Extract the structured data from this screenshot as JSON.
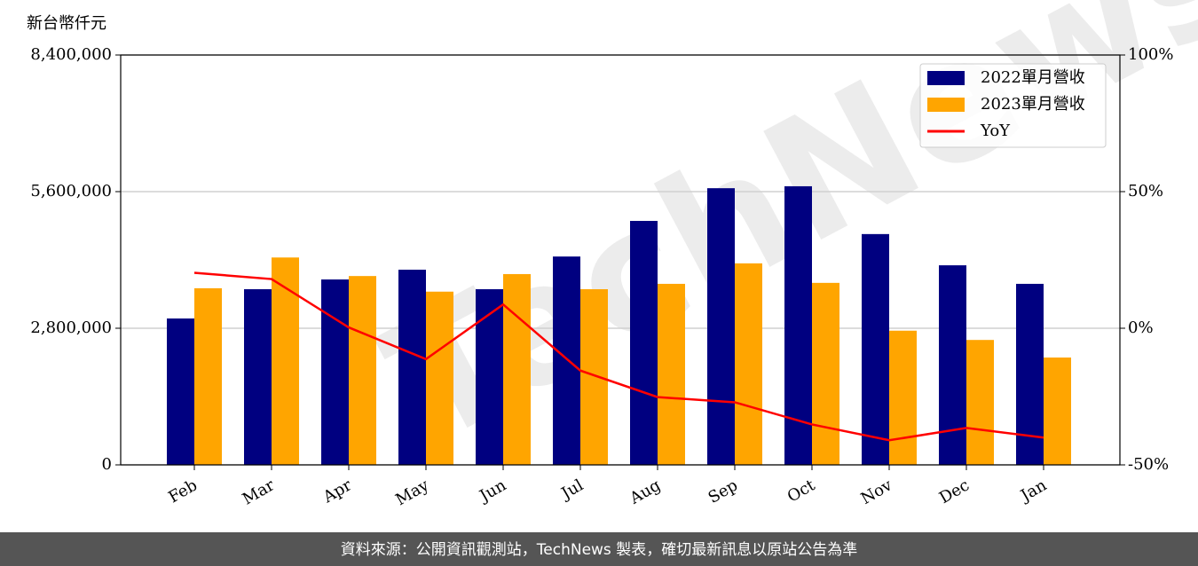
{
  "chart_data": {
    "type": "bar",
    "y_label": "新台幣仟元",
    "watermark": "TechNews",
    "footer": "資料來源：公開資訊觀測站，TechNews 製表，確切最新訊息以原站公告為準",
    "categories": [
      "Feb",
      "Mar",
      "Apr",
      "May",
      "Jun",
      "Jul",
      "Aug",
      "Sep",
      "Oct",
      "Nov",
      "Dec",
      "Jan"
    ],
    "series": [
      {
        "name": "2022單月營收",
        "color": "#000080",
        "values": [
          3000000,
          3600000,
          3800000,
          4000000,
          3600000,
          4270000,
          5000000,
          5670000,
          5710000,
          4730000,
          4090000,
          3710000
        ]
      },
      {
        "name": "2023單月營收",
        "color": "#ffa500",
        "values": [
          3620000,
          4250000,
          3870000,
          3550000,
          3910000,
          3600000,
          3710000,
          4130000,
          3730000,
          2750000,
          2560000,
          2200000
        ]
      },
      {
        "name": "YoY",
        "color": "#ff0000",
        "axis": "y2",
        "values": [
          20.3,
          18,
          0.3,
          -11.3,
          8.7,
          -15.5,
          -25.2,
          -27.1,
          -35.2,
          -41,
          -36.5,
          -40
        ]
      }
    ],
    "ylim": [
      0,
      8400000
    ],
    "yticks": [
      {
        "value": 0,
        "label": "0"
      },
      {
        "value": 2800000,
        "label": "2,800,000"
      },
      {
        "value": 5600000,
        "label": "5,600,000"
      },
      {
        "value": 8400000,
        "label": "8,400,000"
      }
    ],
    "y2lim": [
      -50,
      100
    ],
    "y2ticks": [
      {
        "value": -50,
        "label": "-50%"
      },
      {
        "value": 0,
        "label": "0%"
      },
      {
        "value": 50,
        "label": "50%"
      },
      {
        "value": 100,
        "label": "100%"
      }
    ],
    "grid": true,
    "legend": "upper right"
  }
}
